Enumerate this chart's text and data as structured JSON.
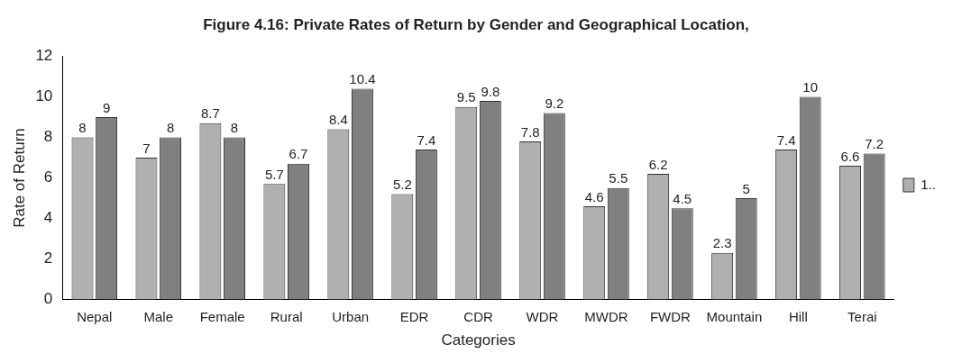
{
  "chart_data": {
    "type": "bar",
    "title": "Figure 4.16: Private Rates of Return by Gender and Geographical Location,",
    "xlabel": "Categories",
    "ylabel": "Rate of Return",
    "categories": [
      "Nepal",
      "Male",
      "Female",
      "Rural",
      "Urban",
      "EDR",
      "CDR",
      "WDR",
      "MWDR",
      "FWDR",
      "Mountain",
      "Hill",
      "Terai"
    ],
    "series": [
      {
        "name": "1..",
        "color": "#b0b0b0",
        "values": [
          8,
          7,
          8.7,
          5.7,
          8.4,
          5.2,
          9.5,
          7.8,
          4.6,
          6.2,
          2.3,
          7.4,
          6.6
        ]
      },
      {
        "color": "#808080",
        "values": [
          9,
          8,
          8,
          6.7,
          10.4,
          7.4,
          9.8,
          9.2,
          5.5,
          4.5,
          5,
          10,
          7.2
        ]
      }
    ],
    "ylim": [
      0,
      12
    ],
    "yticks": [
      0,
      2,
      4,
      6,
      8,
      10,
      12
    ],
    "data_labels": true,
    "legend": "right",
    "grid": false
  }
}
